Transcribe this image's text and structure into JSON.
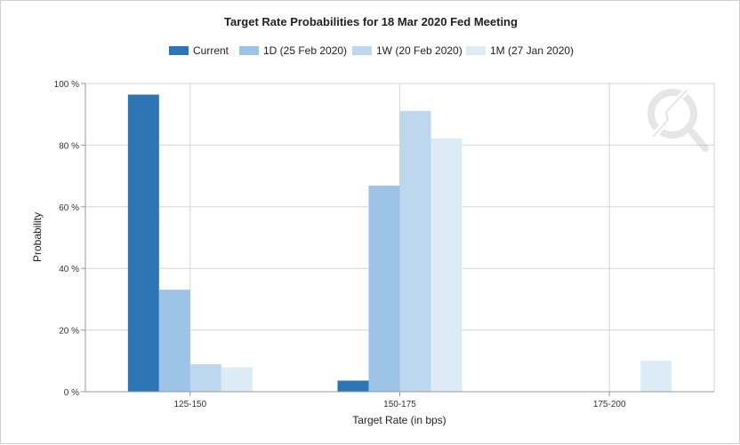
{
  "chart_data": {
    "type": "bar",
    "title": "Target Rate Probabilities for 18 Mar 2020 Fed Meeting",
    "xlabel": "Target Rate (in bps)",
    "ylabel": "Probability",
    "categories": [
      "125-150",
      "150-175",
      "175-200"
    ],
    "yticks": [
      "0 %",
      "20 %",
      "40 %",
      "60 %",
      "80 %",
      "100 %"
    ],
    "ylim": [
      0,
      100
    ],
    "grid": true,
    "legend_position": "top",
    "series": [
      {
        "name": "Current",
        "values": [
          96.4,
          3.6,
          0
        ],
        "color": "#2e75b6"
      },
      {
        "name": "1D (25 Feb 2020)",
        "values": [
          33.1,
          66.9,
          0
        ],
        "color": "#9dc3e6"
      },
      {
        "name": "1W (20 Feb 2020)",
        "values": [
          8.9,
          91.1,
          0
        ],
        "color": "#bdd7ee"
      },
      {
        "name": "1M (27 Jan 2020)",
        "values": [
          7.9,
          82.2,
          10.0
        ],
        "color": "#ddebf7"
      }
    ]
  }
}
